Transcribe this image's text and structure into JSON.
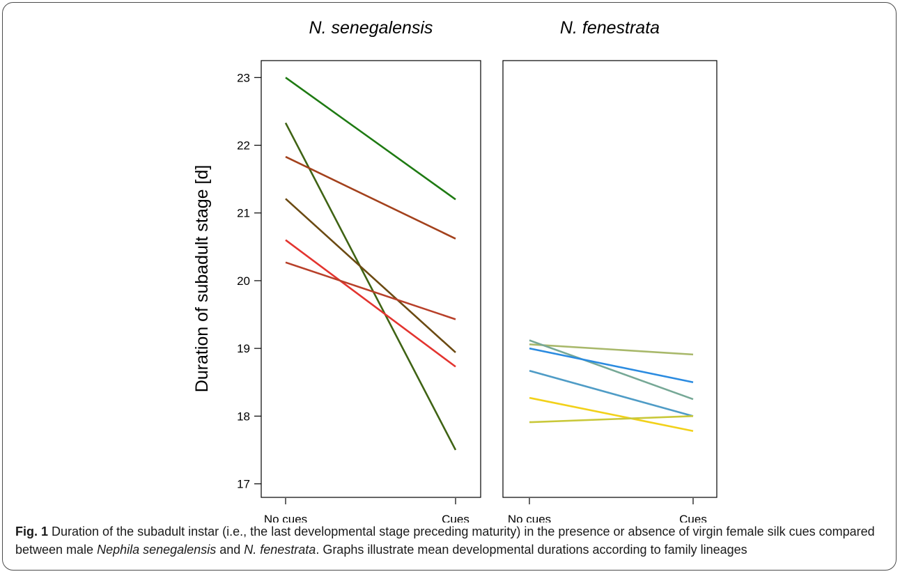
{
  "chart_data": [
    {
      "type": "line",
      "title": "N. senegalensis",
      "ylabel": "Duration of subadult stage [d]",
      "categories": [
        "No cues",
        "Cues"
      ],
      "ylim": [
        16.8,
        23.25
      ],
      "yticks": [
        17,
        18,
        19,
        20,
        21,
        22,
        23
      ],
      "series": [
        {
          "values": [
            23.0,
            21.2
          ],
          "color": "#1e7a12"
        },
        {
          "values": [
            22.33,
            17.5
          ],
          "color": "#3f6314"
        },
        {
          "values": [
            21.83,
            20.62
          ],
          "color": "#a3411c"
        },
        {
          "values": [
            21.21,
            18.94
          ],
          "color": "#6b4a12"
        },
        {
          "values": [
            20.6,
            18.73
          ],
          "color": "#e3342f"
        },
        {
          "values": [
            20.27,
            19.43
          ],
          "color": "#b8402a"
        }
      ]
    },
    {
      "type": "line",
      "title": "N. fenestrata",
      "categories": [
        "No cues",
        "Cues"
      ],
      "ylim": [
        16.8,
        23.25
      ],
      "series": [
        {
          "values": [
            19.06,
            18.91
          ],
          "color": "#a8b86a"
        },
        {
          "values": [
            19.12,
            18.25
          ],
          "color": "#76a896"
        },
        {
          "values": [
            19.0,
            18.5
          ],
          "color": "#2b8be0"
        },
        {
          "values": [
            18.67,
            18.0
          ],
          "color": "#4f9cc6"
        },
        {
          "values": [
            18.27,
            17.78
          ],
          "color": "#f2d11a"
        },
        {
          "values": [
            17.91,
            18.0
          ],
          "color": "#c9c83a"
        }
      ]
    }
  ],
  "caption": {
    "label": "Fig. 1",
    "t1": " Duration of the subadult instar (i.e., the last developmental stage preceding maturity) in the presence or absence of virgin female silk cues compared between male ",
    "species1": "Nephila senegalensis",
    "t2": " and ",
    "species2": "N. fenestrata",
    "t3": ". Graphs illustrate mean developmental durations according to family lineages"
  }
}
